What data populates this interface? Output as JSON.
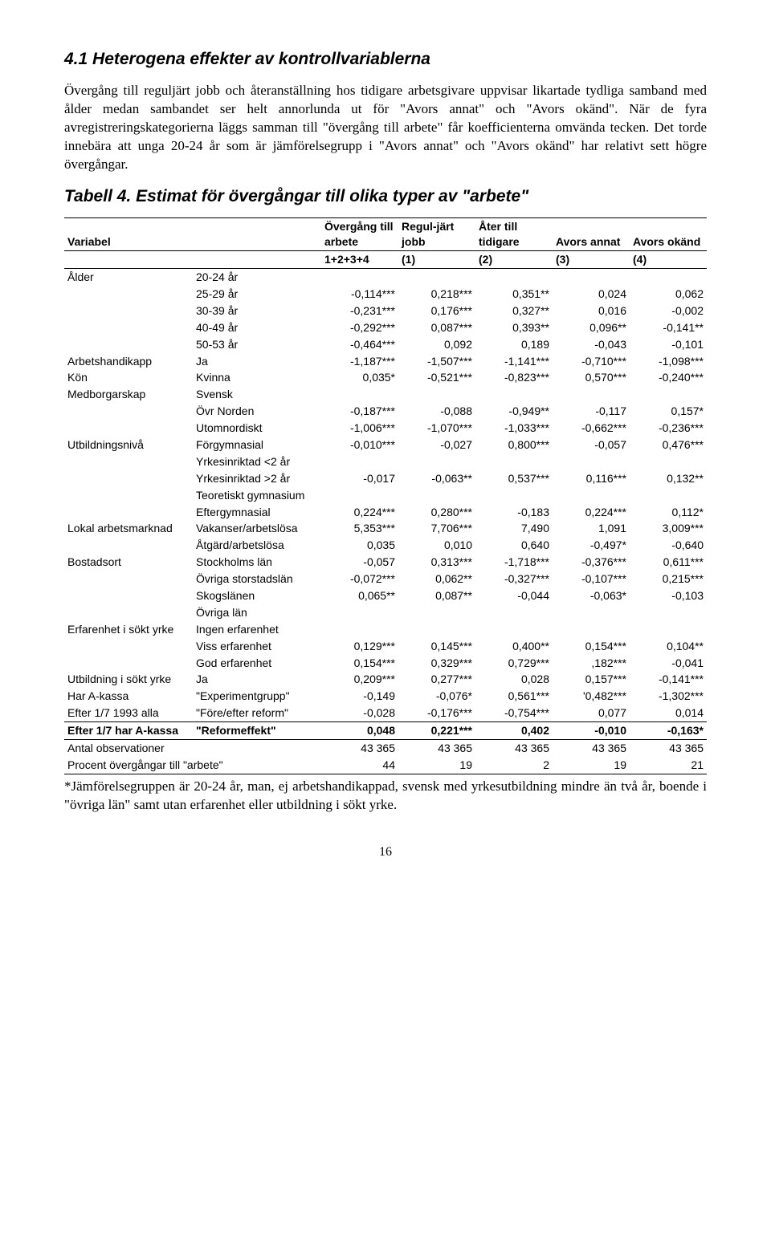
{
  "section": {
    "heading": "4.1  Heterogena effekter av kontrollvariablerna",
    "paragraph": "Övergång till reguljärt jobb och återanställning hos tidigare arbetsgivare uppvisar likartade tydliga samband med ålder medan sambandet ser helt annorlunda ut för \"Avors annat\" och \"Avors okänd\". När de fyra avregistreringskategorierna läggs samman till \"övergång till arbete\" får koefficienterna omvända tecken. Det torde innebära att unga 20-24 år som är jämförelsegrupp i \"Avors annat\" och \"Avors okänd\" har relativt sett högre övergångar."
  },
  "table": {
    "title": "Tabell 4. Estimat för övergångar till olika typer av \"arbete\"",
    "header": {
      "variabel": "Variabel",
      "col1": "Övergång till arbete",
      "col2": "Regul-järt jobb",
      "col3": "Åter till tidigare",
      "col4": "Avors annat",
      "col5": "Avors okänd"
    },
    "subheader": [
      "1+2+3+4",
      "(1)",
      "(2)",
      "(3)",
      "(4)"
    ],
    "rows": [
      {
        "group": "Ålder",
        "label": "20-24 år",
        "vals": [
          "",
          "",
          "",
          "",
          ""
        ]
      },
      {
        "group": "",
        "label": "25-29 år",
        "vals": [
          "-0,114***",
          "0,218***",
          "0,351**",
          "0,024",
          "0,062"
        ]
      },
      {
        "group": "",
        "label": "30-39 år",
        "vals": [
          "-0,231***",
          "0,176***",
          "0,327**",
          "0,016",
          "-0,002"
        ]
      },
      {
        "group": "",
        "label": "40-49 år",
        "vals": [
          "-0,292***",
          "0,087***",
          "0,393**",
          "0,096**",
          "-0,141**"
        ]
      },
      {
        "group": "",
        "label": "50-53 år",
        "vals": [
          "-0,464***",
          "0,092",
          "0,189",
          "-0,043",
          "-0,101"
        ]
      },
      {
        "group": "Arbetshandikapp",
        "label": "Ja",
        "vals": [
          "-1,187***",
          "-1,507***",
          "-1,141***",
          "-0,710***",
          "-1,098***"
        ]
      },
      {
        "group": "Kön",
        "label": "Kvinna",
        "vals": [
          "0,035*",
          "-0,521***",
          "-0,823***",
          "0,570***",
          "-0,240***"
        ]
      },
      {
        "group": "Medborgarskap",
        "label": "Svensk",
        "vals": [
          "",
          "",
          "",
          "",
          ""
        ]
      },
      {
        "group": "",
        "label": "Övr Norden",
        "vals": [
          "-0,187***",
          "-0,088",
          "-0,949**",
          "-0,117",
          "0,157*"
        ]
      },
      {
        "group": "",
        "label": "Utomnordiskt",
        "vals": [
          "-1,006***",
          "-1,070***",
          "-1,033***",
          "-0,662***",
          "-0,236***"
        ]
      },
      {
        "group": "Utbildningsnivå",
        "label": "Förgymnasial",
        "vals": [
          "-0,010***",
          "-0,027",
          "0,800***",
          "-0,057",
          "0,476***"
        ]
      },
      {
        "group": "",
        "label": "Yrkesinriktad <2 år",
        "vals": [
          "",
          "",
          "",
          "",
          ""
        ]
      },
      {
        "group": "",
        "label": "Yrkesinriktad >2 år",
        "vals": [
          "-0,017",
          "-0,063**",
          "0,537***",
          "0,116***",
          "0,132**"
        ],
        "rowspan_label_below": "Teoretiskt gymnasium"
      },
      {
        "group": "",
        "label": "Teoretiskt gymnasium",
        "vals": [
          "",
          "",
          "",
          "",
          ""
        ],
        "skip_vals": true
      },
      {
        "group": "",
        "label": "Eftergymnasial",
        "vals": [
          "0,224***",
          "0,280***",
          "-0,183",
          "0,224***",
          "0,112*"
        ]
      },
      {
        "group": "Lokal arbetsmarknad",
        "label": "Vakanser/arbetslösa",
        "vals": [
          "5,353***",
          "7,706***",
          "7,490",
          "1,091",
          "3,009***"
        ]
      },
      {
        "group": "",
        "label": "Åtgärd/arbetslösa",
        "vals": [
          "0,035",
          "0,010",
          "0,640",
          "-0,497*",
          "-0,640"
        ]
      },
      {
        "group": "Bostadsort",
        "label": "Stockholms län",
        "vals": [
          "-0,057",
          "0,313***",
          "-1,718***",
          "-0,376***",
          "0,611***"
        ]
      },
      {
        "group": "",
        "label": "Övriga storstadslän",
        "vals": [
          "-0,072***",
          "0,062**",
          "-0,327***",
          "-0,107***",
          "0,215***"
        ]
      },
      {
        "group": "",
        "label": "Skogslänen",
        "vals": [
          "0,065**",
          "0,087**",
          "-0,044",
          "-0,063*",
          "-0,103"
        ]
      },
      {
        "group": "",
        "label": "Övriga län",
        "vals": [
          "",
          "",
          "",
          "",
          ""
        ]
      },
      {
        "group": "Erfarenhet i sökt yrke",
        "label": "Ingen erfarenhet",
        "vals": [
          "",
          "",
          "",
          "",
          ""
        ]
      },
      {
        "group": "",
        "label": "Viss erfarenhet",
        "vals": [
          "0,129***",
          "0,145***",
          "0,400**",
          "0,154***",
          "0,104**"
        ]
      },
      {
        "group": "",
        "label": "God erfarenhet",
        "vals": [
          "0,154***",
          "0,329***",
          "0,729***",
          ",182***",
          "-0,041"
        ]
      },
      {
        "group": "Utbildning i sökt yrke",
        "label": "Ja",
        "vals": [
          "0,209***",
          "0,277***",
          "0,028",
          "0,157***",
          "-0,141***"
        ]
      },
      {
        "group": "Har A-kassa",
        "label": "\"Experimentgrupp\"",
        "vals": [
          "-0,149",
          "-0,076*",
          "0,561***",
          "'0,482***",
          "-1,302***"
        ]
      },
      {
        "group": "Efter 1/7 1993 alla",
        "label": "\"Före/efter reform\"",
        "vals": [
          "-0,028",
          "-0,176***",
          "-0,754***",
          "0,077",
          "0,014"
        ]
      }
    ],
    "effect_row": {
      "group": "Efter 1/7 har A-kassa",
      "label": "\"Reformeffekt\"",
      "vals": [
        "0,048",
        "0,221***",
        "0,402",
        "-0,010",
        "-0,163*"
      ]
    },
    "obs_row": {
      "group": "Antal observationer",
      "label": "",
      "vals": [
        "43 365",
        "43 365",
        "43 365",
        "43 365",
        "43 365"
      ]
    },
    "pct_row": {
      "group": "Procent övergångar till \"arbete\"",
      "label": "",
      "vals": [
        "44",
        "19",
        "2",
        "19",
        "21"
      ]
    },
    "footnote": "*Jämförelsegruppen är 20-24 år, man, ej arbetshandikappad, svensk med yrkesutbildning mindre än två år, boende i \"övriga län\" samt utan erfarenhet eller utbildning i sökt yrke."
  },
  "page_number": "16"
}
